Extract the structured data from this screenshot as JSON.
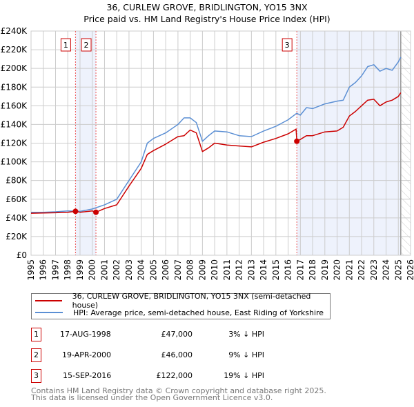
{
  "title_line1": "36, CURLEW GROVE, BRIDLINGTON, YO15 3NX",
  "title_line2": "Price paid vs. HM Land Registry's House Price Index (HPI)",
  "colors": {
    "property": "#cc0000",
    "hpi": "#5b8fd4",
    "shade": "#eef2fc",
    "marker_border": "#cc0000"
  },
  "chart_data": {
    "type": "line",
    "ylabel": "",
    "xlabel": "",
    "ylim": [
      0,
      240000
    ],
    "xlim": [
      1995,
      2026
    ],
    "grid": true,
    "y_ticks": [
      "£0",
      "£20K",
      "£40K",
      "£60K",
      "£80K",
      "£100K",
      "£120K",
      "£140K",
      "£160K",
      "£180K",
      "£200K",
      "£220K",
      "£240K"
    ],
    "x_ticks": [
      "1995",
      "1996",
      "1997",
      "1998",
      "1999",
      "2000",
      "2001",
      "2002",
      "2003",
      "2004",
      "2005",
      "2006",
      "2007",
      "2008",
      "2009",
      "2010",
      "2011",
      "2012",
      "2013",
      "2014",
      "2015",
      "2016",
      "2017",
      "2018",
      "2019",
      "2020",
      "2021",
      "2022",
      "2023",
      "2024",
      "2025",
      "2026"
    ],
    "series": [
      {
        "name": "36, CURLEW GROVE, BRIDLINGTON, YO15 3NX (semi-detached house)",
        "x": [
          1995,
          1997,
          1998,
          1998.63,
          1999,
          2000,
          2000.3,
          2001,
          2002,
          2003,
          2004,
          2004.5,
          2005,
          2006,
          2007,
          2007.5,
          2008,
          2008.5,
          2009,
          2009.5,
          2010,
          2011,
          2012,
          2013,
          2014,
          2015,
          2016,
          2016.65,
          2016.71,
          2017,
          2017.5,
          2018,
          2019,
          2020,
          2020.5,
          2021,
          2021.5,
          2022,
          2022.5,
          2023,
          2023.5,
          2024,
          2024.5,
          2025,
          2025.2
        ],
        "y": [
          45000,
          45500,
          46000,
          47000,
          46000,
          47500,
          46000,
          50000,
          54000,
          74000,
          93000,
          108000,
          112000,
          119000,
          127000,
          128000,
          134000,
          131000,
          111000,
          115000,
          120000,
          118000,
          117000,
          116000,
          121000,
          125000,
          130000,
          135000,
          122000,
          124000,
          128000,
          128000,
          132000,
          133000,
          137000,
          149000,
          154000,
          160000,
          166000,
          167000,
          160000,
          164000,
          166000,
          170000,
          174000
        ]
      },
      {
        "name": "HPI: Average price, semi-detached house, East Riding of Yorkshire",
        "x": [
          1995,
          1996,
          1997,
          1998,
          1999,
          2000,
          2001,
          2002,
          2003,
          2004,
          2004.5,
          2005,
          2006,
          2007,
          2007.5,
          2008,
          2008.5,
          2009,
          2009.5,
          2010,
          2011,
          2012,
          2013,
          2014,
          2015,
          2016,
          2016.7,
          2017,
          2017.5,
          2018,
          2019,
          2020,
          2020.5,
          2021,
          2021.5,
          2022,
          2022.5,
          2023,
          2023.5,
          2024,
          2024.5,
          2025,
          2025.2
        ],
        "y": [
          46000,
          46000,
          46500,
          47500,
          47000,
          49500,
          54000,
          60000,
          80000,
          100000,
          120000,
          125000,
          131000,
          140000,
          147000,
          147000,
          142000,
          122000,
          128000,
          133000,
          132000,
          128000,
          127000,
          133000,
          138000,
          145000,
          152000,
          150000,
          158000,
          157000,
          162000,
          165000,
          166000,
          180000,
          185000,
          192000,
          202000,
          204000,
          197000,
          200000,
          198000,
          207000,
          212000
        ]
      }
    ],
    "sales": [
      {
        "id": "1",
        "x": 1998.63,
        "y": 47000
      },
      {
        "id": "2",
        "x": 2000.3,
        "y": 46000
      },
      {
        "id": "3",
        "x": 2016.71,
        "y": 122000
      }
    ],
    "data_end": 2025.2
  },
  "legend": [
    "36, CURLEW GROVE, BRIDLINGTON, YO15 3NX (semi-detached house)",
    "HPI: Average price, semi-detached house, East Riding of Yorkshire"
  ],
  "transactions": [
    {
      "id": "1",
      "date": "17-AUG-1998",
      "price": "£47,000",
      "hpi": "3% ↓ HPI"
    },
    {
      "id": "2",
      "date": "19-APR-2000",
      "price": "£46,000",
      "hpi": "9% ↓ HPI"
    },
    {
      "id": "3",
      "date": "15-SEP-2016",
      "price": "£122,000",
      "hpi": "19% ↓ HPI"
    }
  ],
  "footer_line1": "Contains HM Land Registry data © Crown copyright and database right 2025.",
  "footer_line2": "This data is licensed under the Open Government Licence v3.0."
}
